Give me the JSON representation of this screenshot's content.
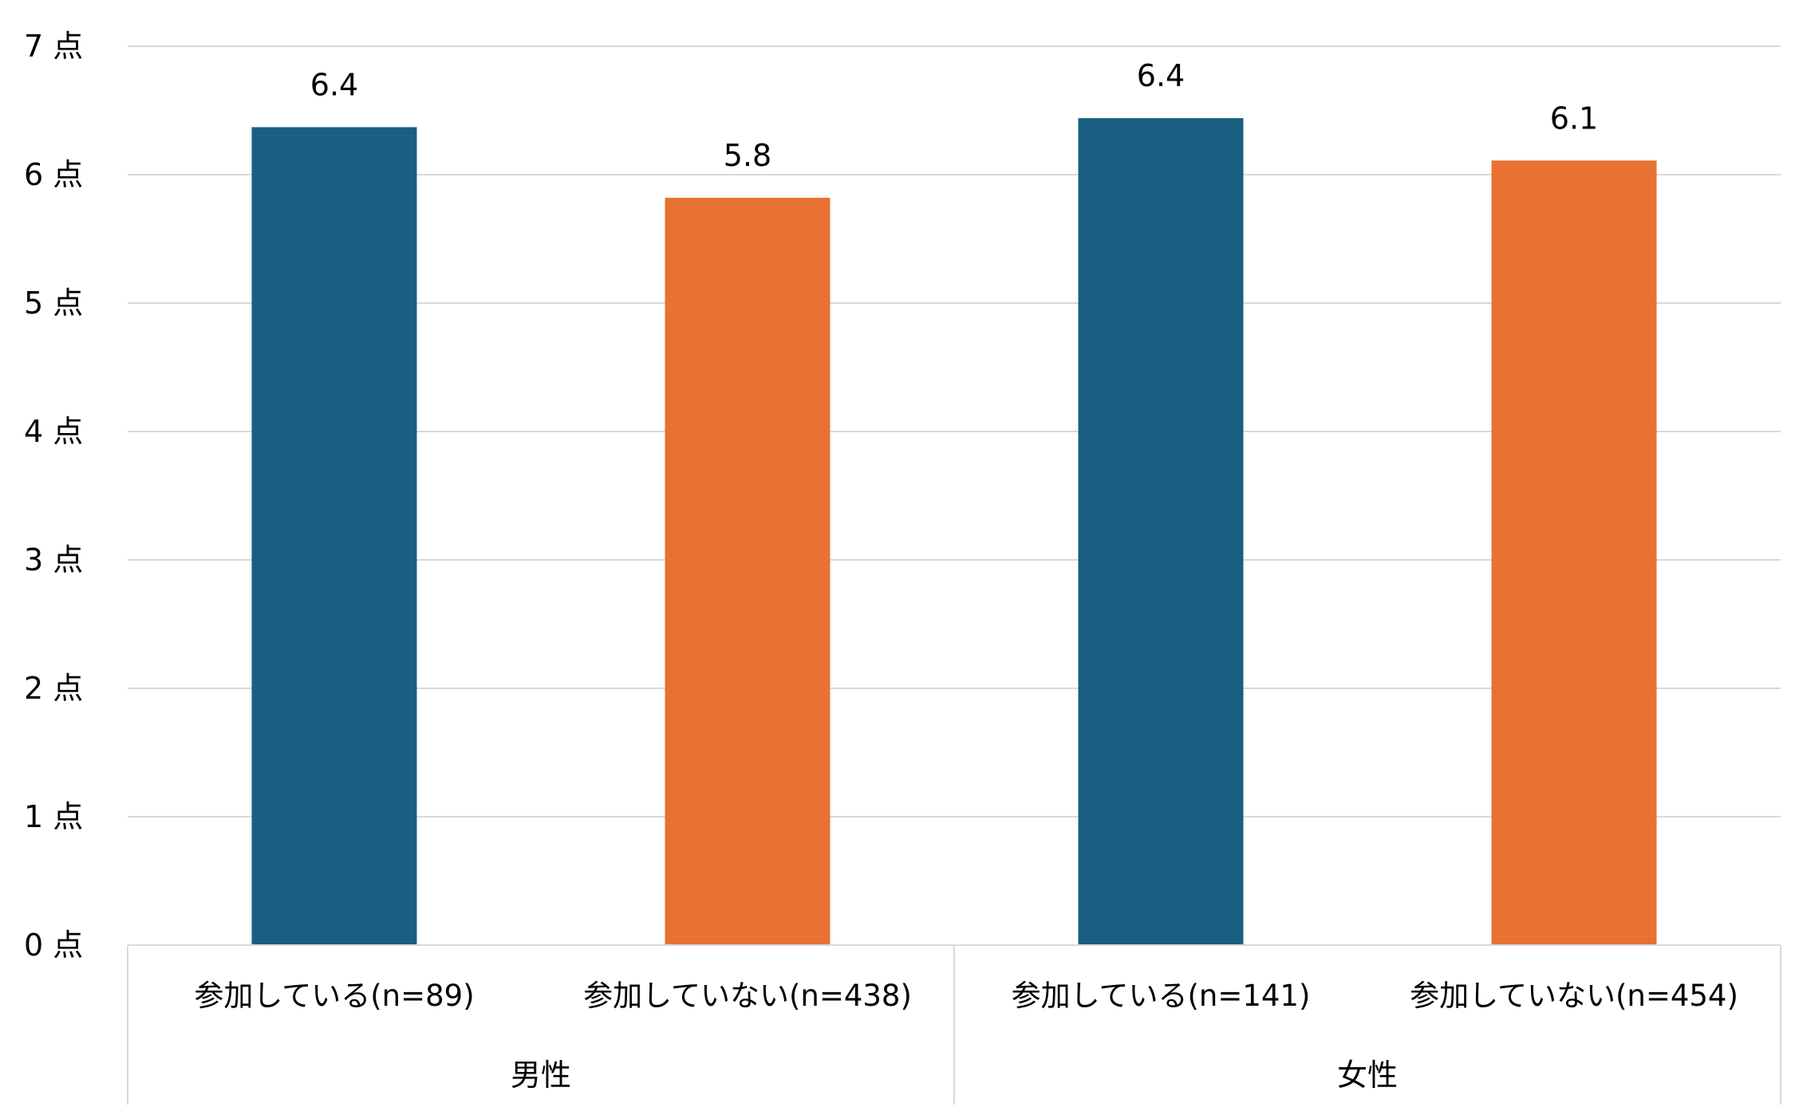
{
  "chart_data": {
    "type": "bar",
    "title": "",
    "xlabel": "",
    "ylabel": "",
    "ylim": [
      0,
      7
    ],
    "y_tick_step": 1,
    "y_tick_labels": [
      "0 点",
      "1 点",
      "2 点",
      "3 点",
      "4 点",
      "5 点",
      "6 点",
      "7 点"
    ],
    "grid": true,
    "legend": "none",
    "groups": [
      {
        "label": "男性",
        "bars": [
          {
            "label": "参加している(n=89)",
            "value": 6.37,
            "display": "6.4",
            "color": "#185f82"
          },
          {
            "label": "参加していない(n=438)",
            "value": 5.82,
            "display": "5.8",
            "color": "#e87232"
          }
        ]
      },
      {
        "label": "女性",
        "bars": [
          {
            "label": "参加している(n=141)",
            "value": 6.44,
            "display": "6.4",
            "color": "#185f82"
          },
          {
            "label": "参加していない(n=454)",
            "value": 6.11,
            "display": "6.1",
            "color": "#e87232"
          }
        ]
      }
    ]
  }
}
